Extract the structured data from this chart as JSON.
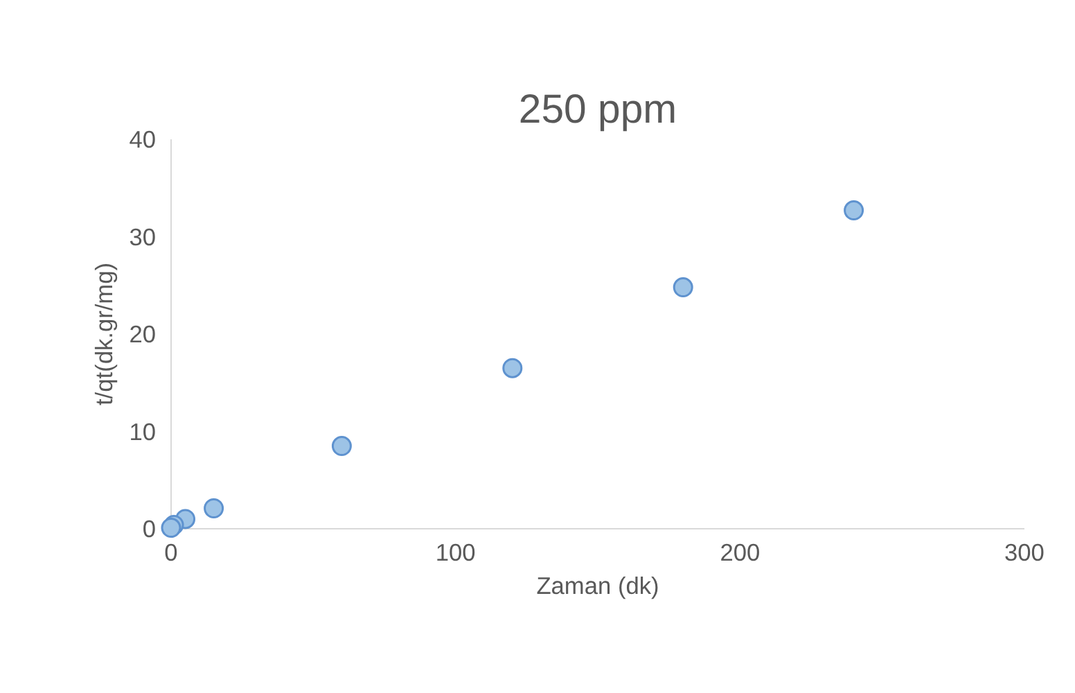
{
  "chart_data": {
    "type": "scatter",
    "title": "250 ppm",
    "xlabel": "Zaman (dk)",
    "ylabel": "t/qt(dk.gr/mg)",
    "x": [
      0,
      1,
      5,
      15,
      60,
      120,
      180,
      240
    ],
    "series": [
      {
        "color": "#9dc3e6",
        "values": [
          0.1,
          0.4,
          1.0,
          2.1,
          8.5,
          16.5,
          24.8,
          32.7
        ]
      }
    ],
    "xlim": [
      0,
      300
    ],
    "xticks": [
      0,
      100,
      200,
      300
    ],
    "ylim": [
      0,
      40
    ],
    "yticks": [
      0,
      10,
      20,
      30,
      40
    ],
    "marker": "circle"
  }
}
